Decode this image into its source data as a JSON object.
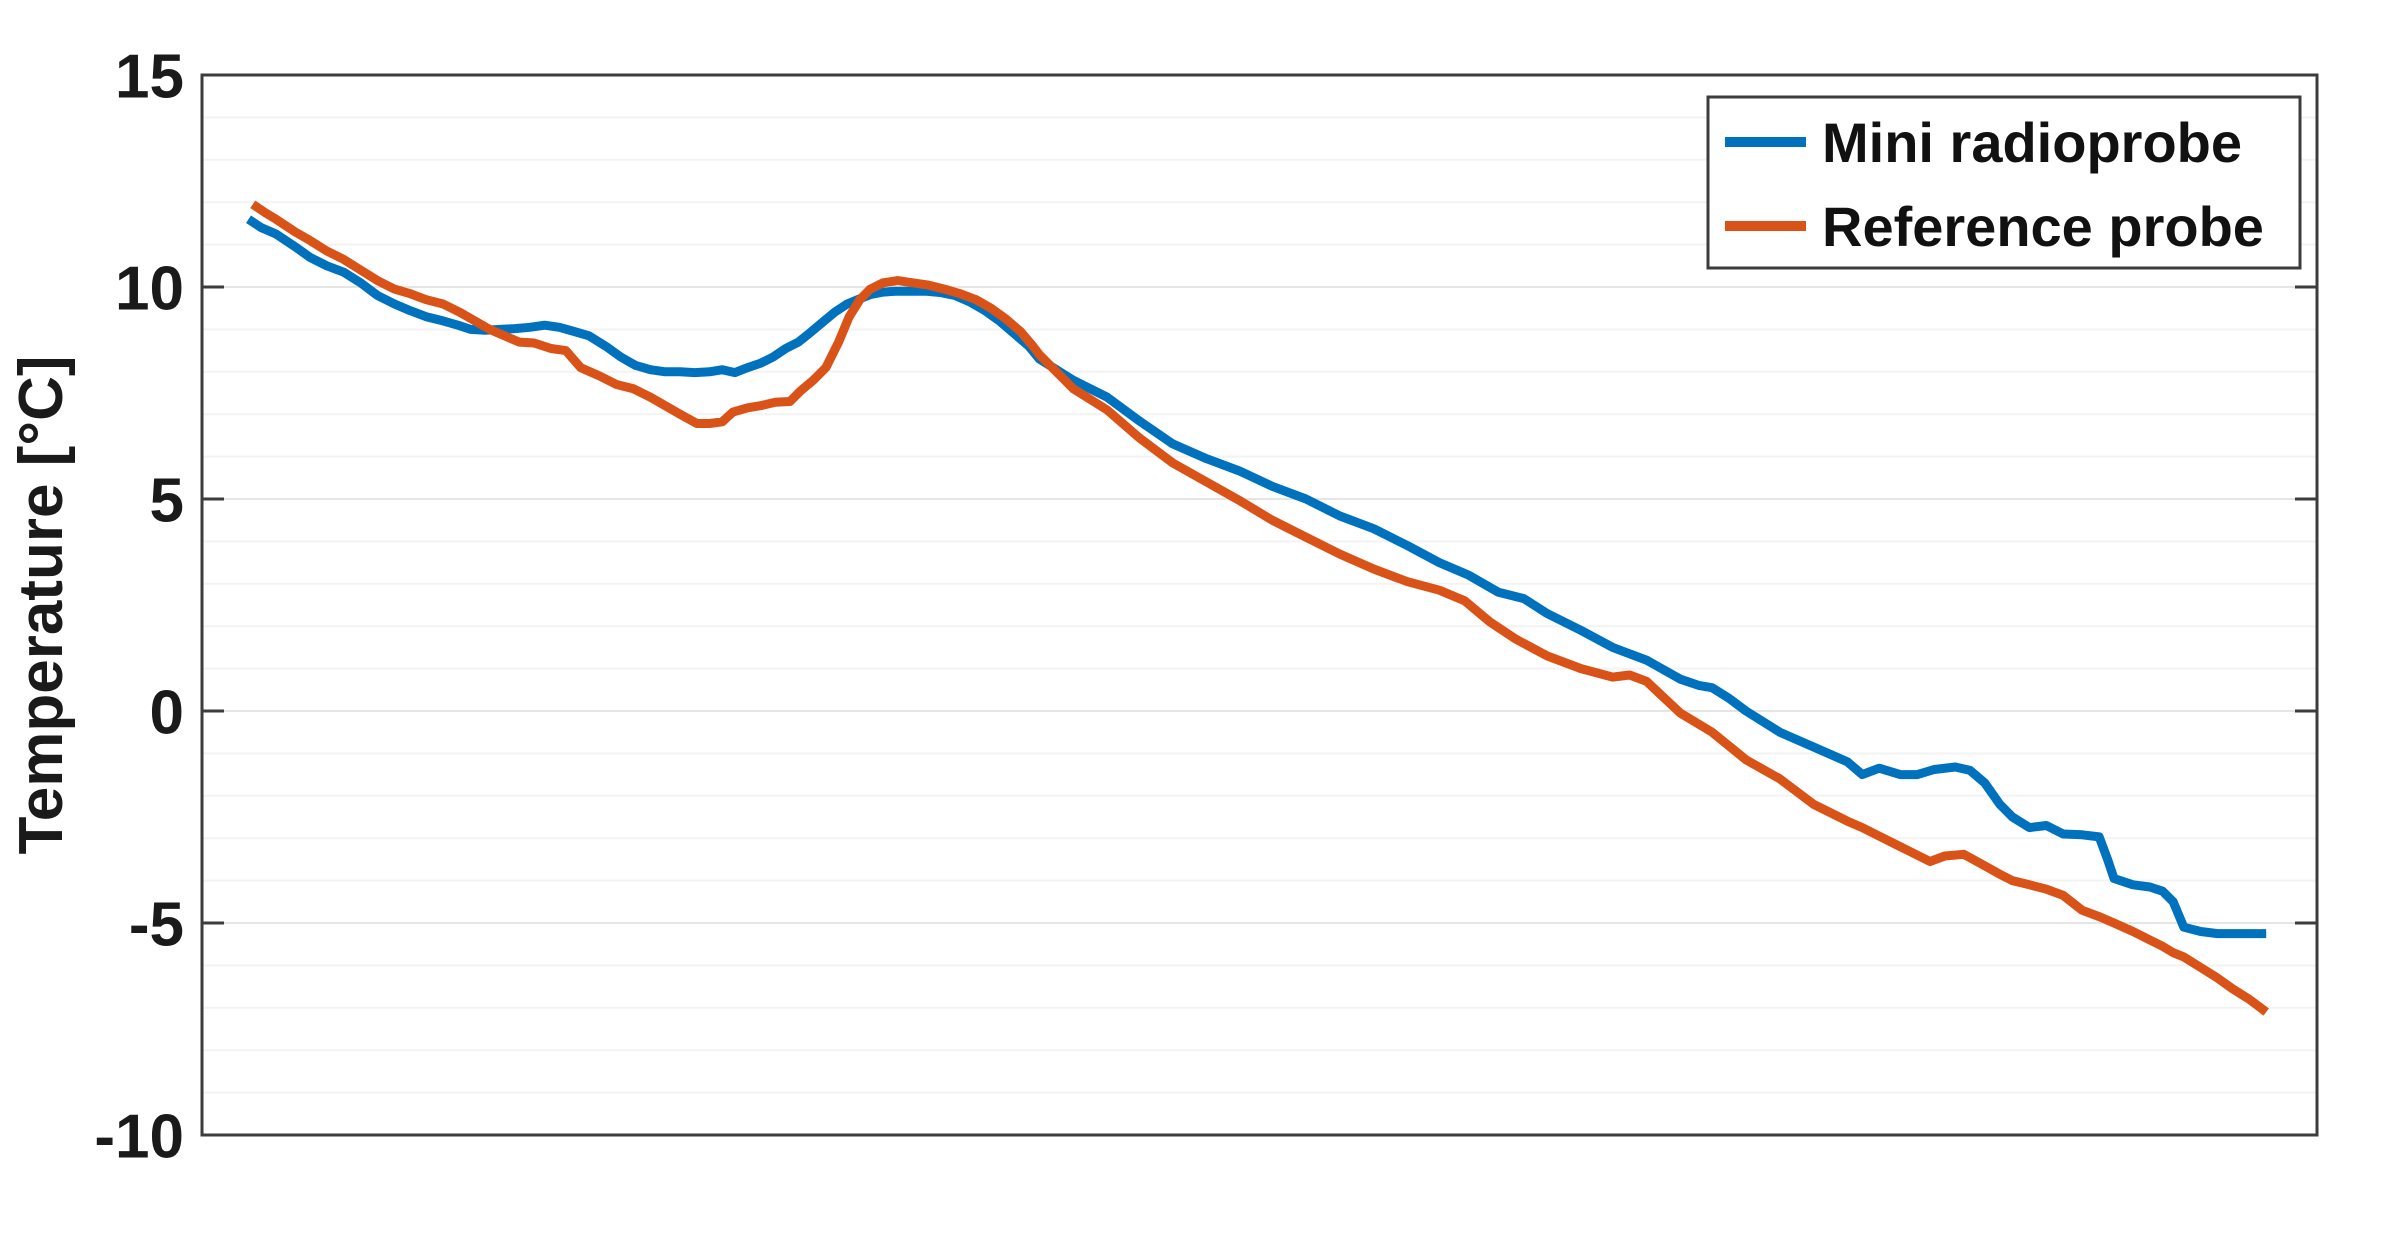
{
  "figure": {
    "background_color": "#ffffff",
    "axis_color": "#3c3c3c",
    "major_grid_color": "#e5e5e5",
    "minor_grid_color": "#f3f3f3",
    "text_color": "#1a1a1a"
  },
  "chart_data": {
    "type": "line",
    "title": "",
    "xlabel": "",
    "ylabel": "Temperature [°C]",
    "x_axis": {
      "tick_labels_visible": false,
      "range_normalized": [
        0,
        1
      ]
    },
    "y_axis": {
      "range": [
        -10,
        15
      ],
      "ticks": [
        15,
        10,
        5,
        0,
        -5,
        -10
      ],
      "tick_labels": [
        "15",
        "10",
        "5",
        "0",
        "-5",
        "-10"
      ],
      "minor_grid_step_deg": 1
    },
    "grid": "on",
    "legend": {
      "position": "northeast",
      "entries": [
        "Mini radioprobe",
        "Reference probe"
      ]
    },
    "series": [
      {
        "name": "Mini radioprobe",
        "color": "#0072BD",
        "points": [
          [
            0.022,
            11.6
          ],
          [
            0.028,
            11.4
          ],
          [
            0.035,
            11.25
          ],
          [
            0.044,
            10.95
          ],
          [
            0.051,
            10.7
          ],
          [
            0.059,
            10.5
          ],
          [
            0.067,
            10.35
          ],
          [
            0.075,
            10.1
          ],
          [
            0.083,
            9.8
          ],
          [
            0.091,
            9.6
          ],
          [
            0.098,
            9.45
          ],
          [
            0.106,
            9.3
          ],
          [
            0.114,
            9.2
          ],
          [
            0.121,
            9.1
          ],
          [
            0.127,
            9.0
          ],
          [
            0.134,
            8.98
          ],
          [
            0.141,
            9.0
          ],
          [
            0.148,
            9.02
          ],
          [
            0.155,
            9.05
          ],
          [
            0.162,
            9.1
          ],
          [
            0.169,
            9.05
          ],
          [
            0.176,
            8.95
          ],
          [
            0.183,
            8.85
          ],
          [
            0.191,
            8.6
          ],
          [
            0.198,
            8.35
          ],
          [
            0.205,
            8.15
          ],
          [
            0.212,
            8.05
          ],
          [
            0.219,
            8.0
          ],
          [
            0.226,
            8.0
          ],
          [
            0.233,
            7.98
          ],
          [
            0.24,
            8.0
          ],
          [
            0.246,
            8.05
          ],
          [
            0.252,
            7.98
          ],
          [
            0.258,
            8.1
          ],
          [
            0.264,
            8.2
          ],
          [
            0.27,
            8.35
          ],
          [
            0.276,
            8.55
          ],
          [
            0.282,
            8.7
          ],
          [
            0.287,
            8.9
          ],
          [
            0.293,
            9.15
          ],
          [
            0.299,
            9.4
          ],
          [
            0.305,
            9.6
          ],
          [
            0.31,
            9.7
          ],
          [
            0.316,
            9.82
          ],
          [
            0.322,
            9.88
          ],
          [
            0.328,
            9.9
          ],
          [
            0.335,
            9.9
          ],
          [
            0.342,
            9.9
          ],
          [
            0.349,
            9.87
          ],
          [
            0.356,
            9.8
          ],
          [
            0.363,
            9.65
          ],
          [
            0.37,
            9.45
          ],
          [
            0.377,
            9.2
          ],
          [
            0.384,
            8.9
          ],
          [
            0.391,
            8.6
          ],
          [
            0.396,
            8.3
          ],
          [
            0.412,
            7.8
          ],
          [
            0.428,
            7.4
          ],
          [
            0.443,
            6.85
          ],
          [
            0.459,
            6.3
          ],
          [
            0.475,
            5.95
          ],
          [
            0.491,
            5.65
          ],
          [
            0.506,
            5.3
          ],
          [
            0.522,
            5.0
          ],
          [
            0.538,
            4.6
          ],
          [
            0.554,
            4.3
          ],
          [
            0.57,
            3.9
          ],
          [
            0.585,
            3.5
          ],
          [
            0.599,
            3.2
          ],
          [
            0.613,
            2.8
          ],
          [
            0.625,
            2.65
          ],
          [
            0.636,
            2.3
          ],
          [
            0.652,
            1.9
          ],
          [
            0.667,
            1.5
          ],
          [
            0.675,
            1.35
          ],
          [
            0.683,
            1.2
          ],
          [
            0.699,
            0.75
          ],
          [
            0.708,
            0.6
          ],
          [
            0.714,
            0.55
          ],
          [
            0.722,
            0.3
          ],
          [
            0.73,
            0.0
          ],
          [
            0.746,
            -0.5
          ],
          [
            0.762,
            -0.85
          ],
          [
            0.778,
            -1.2
          ],
          [
            0.785,
            -1.5
          ],
          [
            0.793,
            -1.35
          ],
          [
            0.803,
            -1.5
          ],
          [
            0.811,
            -1.5
          ],
          [
            0.819,
            -1.38
          ],
          [
            0.829,
            -1.32
          ],
          [
            0.836,
            -1.4
          ],
          [
            0.843,
            -1.7
          ],
          [
            0.85,
            -2.2
          ],
          [
            0.856,
            -2.5
          ],
          [
            0.864,
            -2.75
          ],
          [
            0.872,
            -2.7
          ],
          [
            0.88,
            -2.9
          ],
          [
            0.889,
            -2.92
          ],
          [
            0.897,
            -2.97
          ],
          [
            0.901,
            -3.5
          ],
          [
            0.904,
            -3.95
          ],
          [
            0.913,
            -4.1
          ],
          [
            0.921,
            -4.15
          ],
          [
            0.927,
            -4.25
          ],
          [
            0.932,
            -4.5
          ],
          [
            0.937,
            -5.1
          ],
          [
            0.945,
            -5.2
          ],
          [
            0.953,
            -5.25
          ],
          [
            0.96,
            -5.25
          ],
          [
            0.968,
            -5.25
          ],
          [
            0.976,
            -5.25
          ]
        ]
      },
      {
        "name": "Reference probe",
        "color": "#D95319",
        "points": [
          [
            0.024,
            11.95
          ],
          [
            0.03,
            11.75
          ],
          [
            0.035,
            11.6
          ],
          [
            0.044,
            11.3
          ],
          [
            0.051,
            11.1
          ],
          [
            0.059,
            10.85
          ],
          [
            0.067,
            10.65
          ],
          [
            0.075,
            10.4
          ],
          [
            0.083,
            10.15
          ],
          [
            0.091,
            9.95
          ],
          [
            0.098,
            9.85
          ],
          [
            0.106,
            9.7
          ],
          [
            0.114,
            9.6
          ],
          [
            0.122,
            9.4
          ],
          [
            0.129,
            9.2
          ],
          [
            0.136,
            9.0
          ],
          [
            0.143,
            8.85
          ],
          [
            0.15,
            8.7
          ],
          [
            0.157,
            8.68
          ],
          [
            0.165,
            8.55
          ],
          [
            0.172,
            8.5
          ],
          [
            0.179,
            8.1
          ],
          [
            0.188,
            7.9
          ],
          [
            0.196,
            7.7
          ],
          [
            0.204,
            7.6
          ],
          [
            0.212,
            7.4
          ],
          [
            0.219,
            7.2
          ],
          [
            0.226,
            7.0
          ],
          [
            0.234,
            6.78
          ],
          [
            0.24,
            6.78
          ],
          [
            0.246,
            6.82
          ],
          [
            0.251,
            7.05
          ],
          [
            0.258,
            7.15
          ],
          [
            0.264,
            7.2
          ],
          [
            0.271,
            7.28
          ],
          [
            0.278,
            7.3
          ],
          [
            0.283,
            7.55
          ],
          [
            0.289,
            7.8
          ],
          [
            0.295,
            8.1
          ],
          [
            0.301,
            8.7
          ],
          [
            0.306,
            9.3
          ],
          [
            0.311,
            9.7
          ],
          [
            0.316,
            9.95
          ],
          [
            0.322,
            10.1
          ],
          [
            0.329,
            10.15
          ],
          [
            0.336,
            10.1
          ],
          [
            0.343,
            10.05
          ],
          [
            0.351,
            9.95
          ],
          [
            0.358,
            9.85
          ],
          [
            0.366,
            9.7
          ],
          [
            0.373,
            9.5
          ],
          [
            0.38,
            9.25
          ],
          [
            0.387,
            8.95
          ],
          [
            0.393,
            8.6
          ],
          [
            0.396,
            8.4
          ],
          [
            0.412,
            7.6
          ],
          [
            0.428,
            7.1
          ],
          [
            0.443,
            6.45
          ],
          [
            0.459,
            5.85
          ],
          [
            0.475,
            5.4
          ],
          [
            0.491,
            4.95
          ],
          [
            0.506,
            4.5
          ],
          [
            0.522,
            4.1
          ],
          [
            0.538,
            3.7
          ],
          [
            0.554,
            3.35
          ],
          [
            0.57,
            3.05
          ],
          [
            0.585,
            2.85
          ],
          [
            0.597,
            2.6
          ],
          [
            0.609,
            2.1
          ],
          [
            0.621,
            1.7
          ],
          [
            0.636,
            1.3
          ],
          [
            0.652,
            1.0
          ],
          [
            0.667,
            0.8
          ],
          [
            0.675,
            0.85
          ],
          [
            0.683,
            0.7
          ],
          [
            0.699,
            -0.05
          ],
          [
            0.714,
            -0.5
          ],
          [
            0.73,
            -1.15
          ],
          [
            0.746,
            -1.6
          ],
          [
            0.762,
            -2.2
          ],
          [
            0.778,
            -2.6
          ],
          [
            0.785,
            -2.75
          ],
          [
            0.793,
            -2.95
          ],
          [
            0.803,
            -3.2
          ],
          [
            0.809,
            -3.35
          ],
          [
            0.817,
            -3.55
          ],
          [
            0.824,
            -3.42
          ],
          [
            0.833,
            -3.38
          ],
          [
            0.841,
            -3.6
          ],
          [
            0.85,
            -3.85
          ],
          [
            0.856,
            -4.0
          ],
          [
            0.864,
            -4.1
          ],
          [
            0.872,
            -4.2
          ],
          [
            0.88,
            -4.35
          ],
          [
            0.889,
            -4.7
          ],
          [
            0.897,
            -4.85
          ],
          [
            0.904,
            -5.0
          ],
          [
            0.913,
            -5.2
          ],
          [
            0.921,
            -5.4
          ],
          [
            0.927,
            -5.55
          ],
          [
            0.932,
            -5.7
          ],
          [
            0.937,
            -5.8
          ],
          [
            0.945,
            -6.05
          ],
          [
            0.953,
            -6.3
          ],
          [
            0.96,
            -6.55
          ],
          [
            0.968,
            -6.8
          ],
          [
            0.976,
            -7.1
          ]
        ]
      }
    ]
  }
}
